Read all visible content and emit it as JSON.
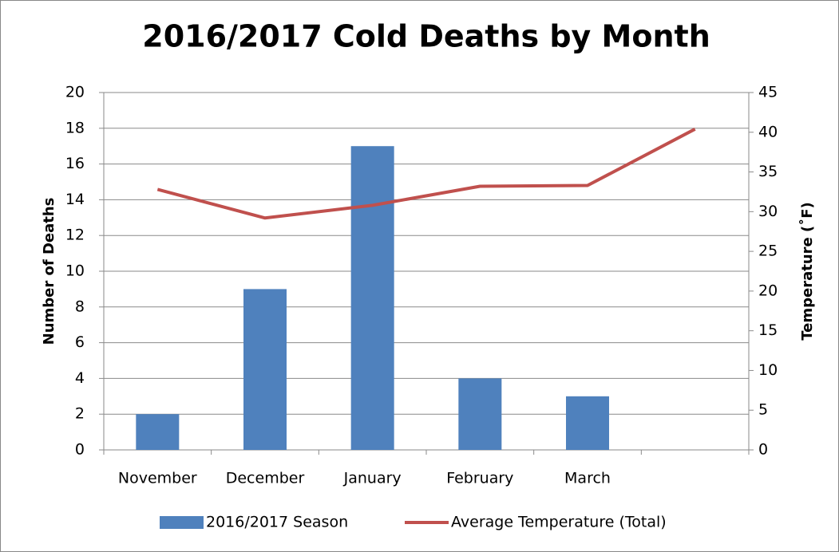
{
  "chart_data": {
    "type": "combo",
    "title": "2016/2017 Cold Deaths by Month",
    "categories": [
      "November",
      "December",
      "January",
      "February",
      "March",
      null
    ],
    "series": [
      {
        "name": "2016/2017 Season",
        "type": "bar",
        "color": "#4f81bd",
        "values": [
          2,
          9,
          17,
          4,
          3,
          null
        ]
      },
      {
        "name": "Average Temperature (Total)",
        "type": "line",
        "axis": "y2",
        "color": "#c0504d",
        "values": [
          32.8,
          29.2,
          30.8,
          33.2,
          33.3,
          40.4
        ]
      }
    ],
    "ylabel": "Number of Deaths",
    "y2label": "Temperature (˚F)",
    "ylim": [
      0,
      20
    ],
    "yticks": [
      0,
      2,
      4,
      6,
      8,
      10,
      12,
      14,
      16,
      18,
      20
    ],
    "y2lim": [
      0,
      45
    ],
    "y2ticks": [
      0,
      5,
      10,
      15,
      20,
      25,
      30,
      35,
      40,
      45
    ],
    "grid": true,
    "legend": "bottom"
  }
}
